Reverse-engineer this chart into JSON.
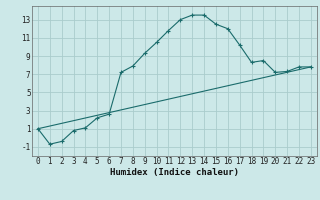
{
  "xlabel": "Humidex (Indice chaleur)",
  "xlim": [
    -0.5,
    23.5
  ],
  "ylim": [
    -2,
    14.5
  ],
  "background_color": "#cce8e8",
  "grid_color": "#aacccc",
  "line_color": "#1a6b6b",
  "curve_x": [
    0,
    1,
    2,
    3,
    4,
    5,
    6,
    7,
    8,
    9,
    10,
    11,
    12,
    13,
    14,
    15,
    16,
    17,
    18,
    19,
    20,
    21,
    22,
    23
  ],
  "curve_y": [
    1.0,
    -0.7,
    -0.4,
    0.8,
    1.1,
    2.2,
    2.6,
    7.2,
    7.9,
    9.3,
    10.5,
    11.8,
    13.0,
    13.5,
    13.5,
    12.5,
    12.0,
    10.2,
    8.3,
    8.5,
    7.2,
    7.3,
    7.8,
    7.8
  ],
  "line_x": [
    0,
    23
  ],
  "line_y": [
    1.0,
    7.8
  ],
  "xticks": [
    0,
    1,
    2,
    3,
    4,
    5,
    6,
    7,
    8,
    9,
    10,
    11,
    12,
    13,
    14,
    15,
    16,
    17,
    18,
    19,
    20,
    21,
    22,
    23
  ],
  "yticks": [
    -1,
    1,
    3,
    5,
    7,
    9,
    11,
    13
  ],
  "tick_fontsize": 5.5,
  "label_fontsize": 6.5
}
